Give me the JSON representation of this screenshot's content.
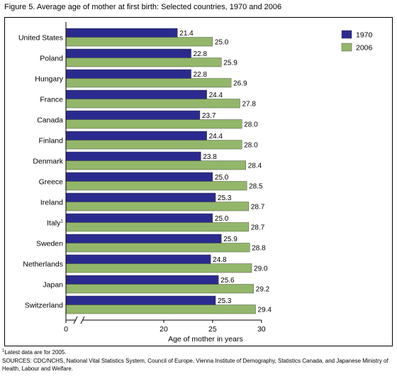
{
  "figure": {
    "title": "Figure 5. Average age of mother at first birth: Selected countries, 1970 and 2006",
    "footnote_marker": "1",
    "footnote_text": "Latest data are for 2005.",
    "sources": "SOURCES: CDC/NCHS, National Vital Statistics System, Council of Europe, Vienna Institute of Demography, Statistics Canada, and Japanese Ministry of Health, Labour and Welfare."
  },
  "chart_data": {
    "type": "bar",
    "orientation": "horizontal",
    "title": "",
    "xlabel": "Age of mother in years",
    "ylabel": "",
    "xlim": [
      0,
      30
    ],
    "axis_break": true,
    "ticks": [
      0,
      20,
      25,
      30
    ],
    "grid": false,
    "legend_position": "top-right",
    "categories": [
      "United States",
      "Poland",
      "Hungary",
      "France",
      "Canada",
      "Finland",
      "Denmark",
      "Greece",
      "Ireland",
      "Italy",
      "Sweden",
      "Netherlands",
      "Japan",
      "Switzerland"
    ],
    "category_footnotes": {
      "Italy": "1"
    },
    "series": [
      {
        "name": "1970",
        "color": "#2b2b8f",
        "values": [
          21.4,
          22.8,
          22.8,
          24.4,
          23.7,
          24.4,
          23.8,
          25.0,
          25.3,
          25.0,
          25.9,
          24.8,
          25.6,
          25.3
        ]
      },
      {
        "name": "2006",
        "color": "#93b76a",
        "values": [
          25.0,
          25.9,
          26.9,
          27.8,
          28.0,
          28.0,
          28.4,
          28.5,
          28.7,
          28.7,
          28.8,
          29.0,
          29.2,
          29.4
        ]
      }
    ]
  }
}
